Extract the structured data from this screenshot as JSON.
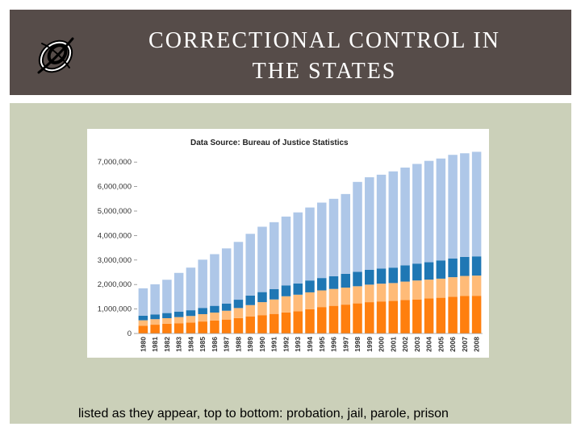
{
  "header": {
    "title_line1": "CORRECTIONAL CONTROL IN",
    "title_line2": "THE STATES",
    "logo_icon": "swirl-logo-icon"
  },
  "caption": "listed as they appear, top to bottom: probation, jail, parole, prison",
  "colors": {
    "header_bg": "#564c49",
    "panel_bg": "#cbd0b9",
    "probation": "#aec7e8",
    "jail": "#1f77b4",
    "parole": "#ffbb78",
    "prison": "#ff7f0e"
  },
  "chart_data": {
    "type": "bar",
    "stacked": true,
    "title": "Data Source: Bureau of Justice Statistics",
    "ylim": [
      0,
      7500000
    ],
    "yticks": [
      0,
      1000000,
      2000000,
      3000000,
      4000000,
      5000000,
      6000000,
      7000000
    ],
    "ytick_labels": [
      "0",
      "1,000,000",
      "2,000,000",
      "3,000,000",
      "4,000,000",
      "5,000,000",
      "6,000,000",
      "7,000,000"
    ],
    "grid": false,
    "legend": "none",
    "categories": [
      "1980",
      "1981",
      "1982",
      "1983",
      "1984",
      "1985",
      "1986",
      "1987",
      "1988",
      "1989",
      "1990",
      "1991",
      "1992",
      "1993",
      "1994",
      "1995",
      "1996",
      "1997",
      "1998",
      "1999",
      "2000",
      "2001",
      "2002",
      "2003",
      "2004",
      "2005",
      "2006",
      "2007",
      "2008"
    ],
    "series": [
      {
        "key": "prison",
        "color": "#ff7f0e",
        "values": [
          320000,
          360000,
          400000,
          420000,
          450000,
          490000,
          530000,
          570000,
          630000,
          700000,
          750000,
          800000,
          860000,
          910000,
          990000,
          1080000,
          1130000,
          1180000,
          1230000,
          1280000,
          1310000,
          1330000,
          1370000,
          1390000,
          1430000,
          1460000,
          1500000,
          1530000,
          1540000
        ]
      },
      {
        "key": "parole",
        "color": "#ffbb78",
        "values": [
          220000,
          225000,
          225000,
          250000,
          265000,
          300000,
          325000,
          360000,
          410000,
          460000,
          530000,
          590000,
          660000,
          675000,
          690000,
          680000,
          690000,
          695000,
          700000,
          715000,
          725000,
          730000,
          750000,
          775000,
          770000,
          780000,
          800000,
          820000,
          825000
        ]
      },
      {
        "key": "jail",
        "color": "#1f77b4",
        "values": [
          185000,
          195000,
          210000,
          225000,
          235000,
          255000,
          275000,
          295000,
          340000,
          390000,
          410000,
          425000,
          445000,
          460000,
          485000,
          505000,
          520000,
          560000,
          590000,
          605000,
          620000,
          630000,
          665000,
          690000,
          710000,
          745000,
          765000,
          780000,
          785000
        ]
      },
      {
        "key": "probation",
        "color": "#aec7e8",
        "values": [
          1120000,
          1230000,
          1360000,
          1580000,
          1740000,
          1970000,
          2110000,
          2250000,
          2360000,
          2520000,
          2670000,
          2730000,
          2810000,
          2900000,
          2980000,
          3080000,
          3160000,
          3260000,
          3670000,
          3780000,
          3830000,
          3930000,
          3990000,
          4070000,
          4140000,
          4160000,
          4230000,
          4230000,
          4270000
        ]
      }
    ]
  }
}
